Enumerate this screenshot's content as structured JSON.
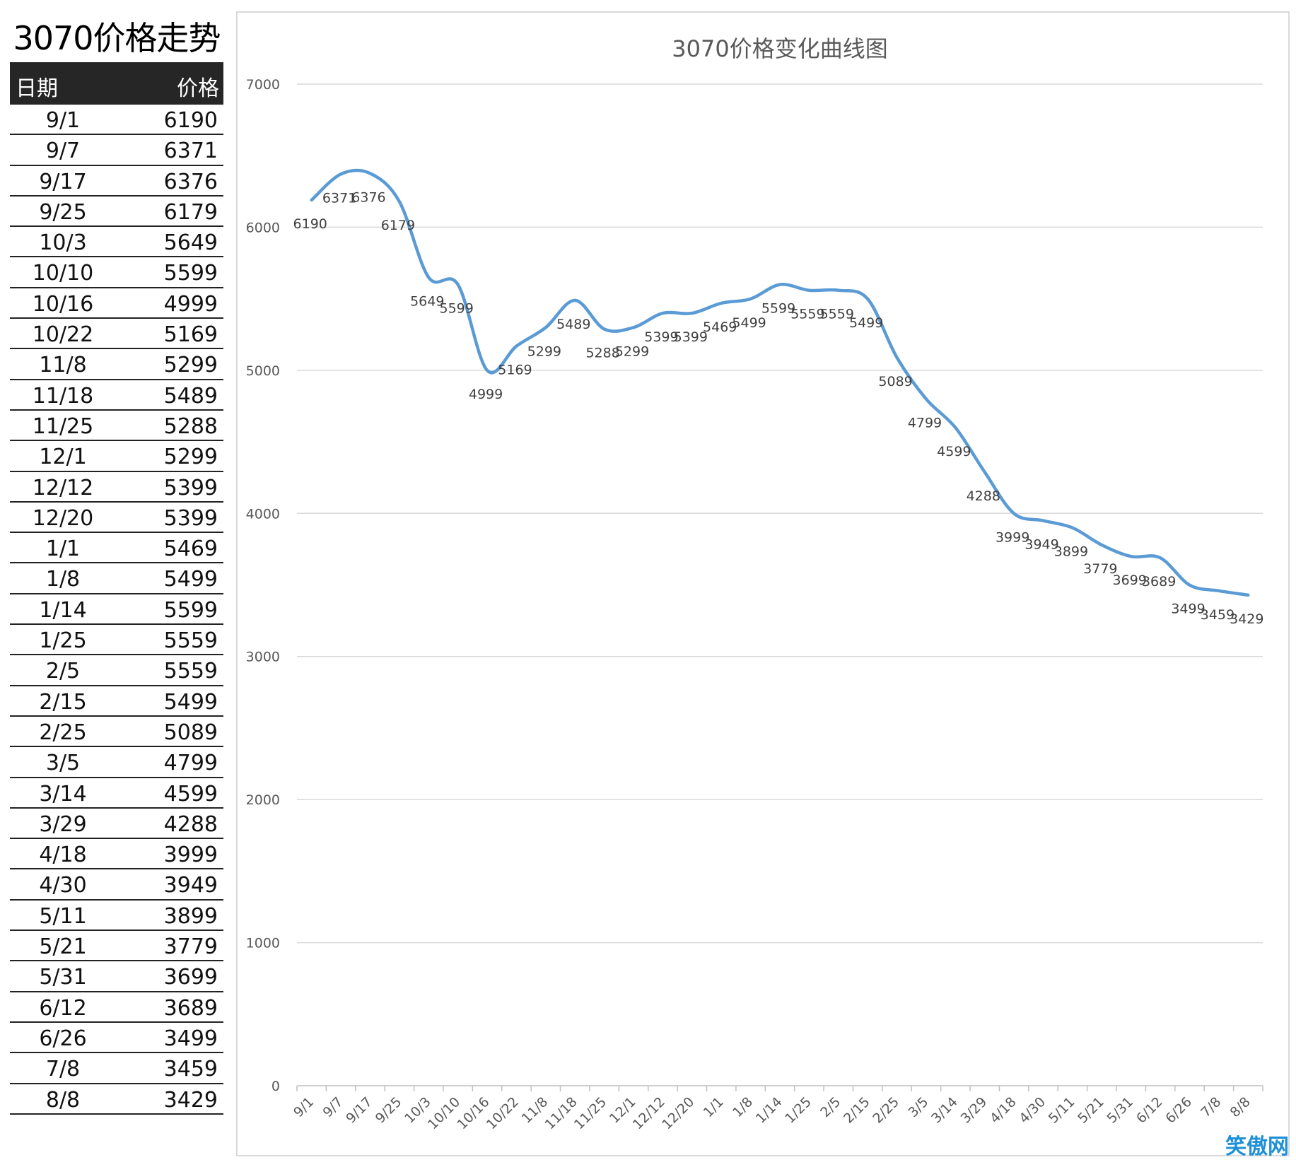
{
  "page": {
    "title": "3070价格走势"
  },
  "table": {
    "header": {
      "date": "日期",
      "price": "价格"
    },
    "rows": [
      {
        "date": "9/1",
        "price": "6190"
      },
      {
        "date": "9/7",
        "price": "6371"
      },
      {
        "date": "9/17",
        "price": "6376"
      },
      {
        "date": "9/25",
        "price": "6179"
      },
      {
        "date": "10/3",
        "price": "5649"
      },
      {
        "date": "10/10",
        "price": "5599"
      },
      {
        "date": "10/16",
        "price": "4999"
      },
      {
        "date": "10/22",
        "price": "5169"
      },
      {
        "date": "11/8",
        "price": "5299"
      },
      {
        "date": "11/18",
        "price": "5489"
      },
      {
        "date": "11/25",
        "price": "5288"
      },
      {
        "date": "12/1",
        "price": "5299"
      },
      {
        "date": "12/12",
        "price": "5399"
      },
      {
        "date": "12/20",
        "price": "5399"
      },
      {
        "date": "1/1",
        "price": "5469"
      },
      {
        "date": "1/8",
        "price": "5499"
      },
      {
        "date": "1/14",
        "price": "5599"
      },
      {
        "date": "1/25",
        "price": "5559"
      },
      {
        "date": "2/5",
        "price": "5559"
      },
      {
        "date": "2/15",
        "price": "5499"
      },
      {
        "date": "2/25",
        "price": "5089"
      },
      {
        "date": "3/5",
        "price": "4799"
      },
      {
        "date": "3/14",
        "price": "4599"
      },
      {
        "date": "3/29",
        "price": "4288"
      },
      {
        "date": "4/18",
        "price": "3999"
      },
      {
        "date": "4/30",
        "price": "3949"
      },
      {
        "date": "5/11",
        "price": "3899"
      },
      {
        "date": "5/21",
        "price": "3779"
      },
      {
        "date": "5/31",
        "price": "3699"
      },
      {
        "date": "6/12",
        "price": "3689"
      },
      {
        "date": "6/26",
        "price": "3499"
      },
      {
        "date": "7/8",
        "price": "3459"
      },
      {
        "date": "8/8",
        "price": "3429"
      }
    ]
  },
  "chart_data": {
    "type": "line",
    "title": "3070价格变化曲线图",
    "xlabel": "",
    "ylabel": "",
    "categories": [
      "9/1",
      "9/7",
      "9/17",
      "9/25",
      "10/3",
      "10/10",
      "10/16",
      "10/22",
      "11/8",
      "11/18",
      "11/25",
      "12/1",
      "12/12",
      "12/20",
      "1/1",
      "1/8",
      "1/14",
      "1/25",
      "2/5",
      "2/15",
      "2/25",
      "3/5",
      "3/14",
      "3/29",
      "4/18",
      "4/30",
      "5/11",
      "5/21",
      "5/31",
      "6/12",
      "6/26",
      "7/8",
      "8/8"
    ],
    "series": [
      {
        "name": "价格",
        "color": "#5b9bd5",
        "values": [
          6190,
          6371,
          6376,
          6179,
          5649,
          5599,
          4999,
          5169,
          5299,
          5489,
          5288,
          5299,
          5399,
          5399,
          5469,
          5499,
          5599,
          5559,
          5559,
          5499,
          5089,
          4799,
          4599,
          4288,
          3999,
          3949,
          3899,
          3779,
          3699,
          3689,
          3499,
          3459,
          3429
        ]
      }
    ],
    "ylim": [
      0,
      7000
    ],
    "yticks": [
      0,
      1000,
      2000,
      3000,
      4000,
      5000,
      6000,
      7000
    ],
    "grid": true,
    "data_labels": true
  },
  "watermark": {
    "text": "笑傲网",
    "color": "#1e90d6"
  }
}
